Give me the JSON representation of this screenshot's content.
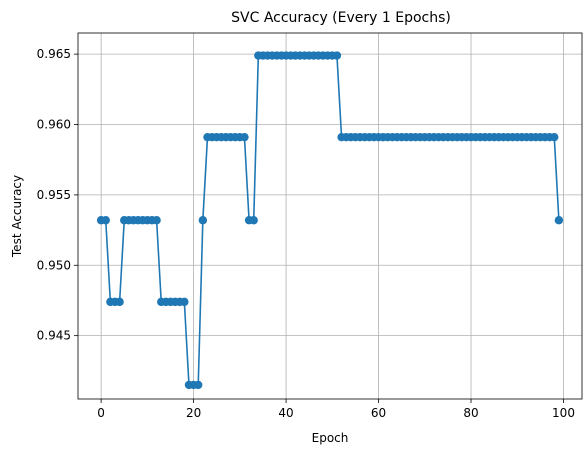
{
  "chart_data": {
    "type": "line",
    "title": "SVC Accuracy (Every 1 Epochs)",
    "xlabel": "Epoch",
    "ylabel": "Test Accuracy",
    "xlim": [
      -5,
      104
    ],
    "ylim": [
      0.9405,
      0.9665
    ],
    "xticks": [
      0,
      20,
      40,
      60,
      80,
      100
    ],
    "yticks": [
      0.945,
      0.95,
      0.955,
      0.96,
      0.965
    ],
    "ytick_labels": [
      "0.945",
      "0.950",
      "0.955",
      "0.960",
      "0.965"
    ],
    "grid": true,
    "color": "#1f77b4",
    "marker": "circle",
    "series": [
      {
        "x": [
          0,
          1,
          2,
          3,
          4,
          5,
          6,
          7,
          8,
          9,
          10,
          11,
          12,
          13,
          14,
          15,
          16,
          17,
          18,
          19,
          20,
          21,
          22,
          23,
          24,
          25,
          26,
          27,
          28,
          29,
          30,
          31,
          32,
          33,
          34,
          35,
          36,
          37,
          38,
          39,
          40,
          41,
          42,
          43,
          44,
          45,
          46,
          47,
          48,
          49,
          50,
          51,
          52,
          53,
          54,
          55,
          56,
          57,
          58,
          59,
          60,
          61,
          62,
          63,
          64,
          65,
          66,
          67,
          68,
          69,
          70,
          71,
          72,
          73,
          74,
          75,
          76,
          77,
          78,
          79,
          80,
          81,
          82,
          83,
          84,
          85,
          86,
          87,
          88,
          89,
          90,
          91,
          92,
          93,
          94,
          95,
          96,
          97,
          98,
          99
        ],
        "values": [
          0.9532,
          0.9532,
          0.9474,
          0.9474,
          0.9474,
          0.9532,
          0.9532,
          0.9532,
          0.9532,
          0.9532,
          0.9532,
          0.9532,
          0.9532,
          0.9474,
          0.9474,
          0.9474,
          0.9474,
          0.9474,
          0.9474,
          0.9415,
          0.9415,
          0.9415,
          0.9532,
          0.9591,
          0.9591,
          0.9591,
          0.9591,
          0.9591,
          0.9591,
          0.9591,
          0.9591,
          0.9591,
          0.9532,
          0.9532,
          0.9649,
          0.9649,
          0.9649,
          0.9649,
          0.9649,
          0.9649,
          0.9649,
          0.9649,
          0.9649,
          0.9649,
          0.9649,
          0.9649,
          0.9649,
          0.9649,
          0.9649,
          0.9649,
          0.9649,
          0.9649,
          0.9591,
          0.9591,
          0.9591,
          0.9591,
          0.9591,
          0.9591,
          0.9591,
          0.9591,
          0.9591,
          0.9591,
          0.9591,
          0.9591,
          0.9591,
          0.9591,
          0.9591,
          0.9591,
          0.9591,
          0.9591,
          0.9591,
          0.9591,
          0.9591,
          0.9591,
          0.9591,
          0.9591,
          0.9591,
          0.9591,
          0.9591,
          0.9591,
          0.9591,
          0.9591,
          0.9591,
          0.9591,
          0.9591,
          0.9591,
          0.9591,
          0.9591,
          0.9591,
          0.9591,
          0.9591,
          0.9591,
          0.9591,
          0.9591,
          0.9591,
          0.9591,
          0.9591,
          0.9591,
          0.9591,
          0.9532
        ]
      }
    ]
  }
}
